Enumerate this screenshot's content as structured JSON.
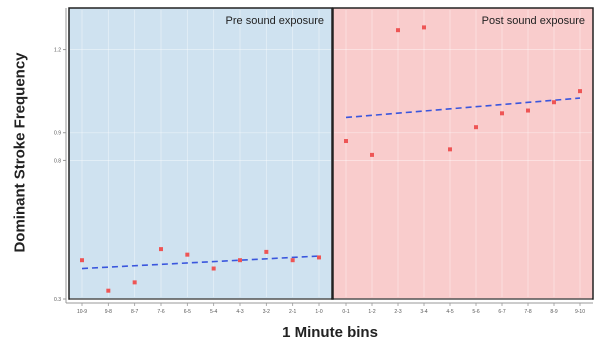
{
  "chart_data": {
    "type": "scatter",
    "ylabel": "Dominant Stroke Frequency",
    "xlabel": "1 Minute bins",
    "ylim": [
      0.3,
      1.35
    ],
    "yticks": [
      0.3,
      0.8,
      0.9,
      1.2
    ],
    "grid": true,
    "panels": [
      {
        "title": "Pre sound exposure",
        "background": "#cfe2f0",
        "categories": [
          "10-9",
          "9-8",
          "8-7",
          "7-6",
          "6-5",
          "5-4",
          "4-3",
          "3-2",
          "2-1",
          "1-0"
        ],
        "values": [
          0.44,
          0.33,
          0.36,
          0.48,
          0.46,
          0.41,
          0.44,
          0.47,
          0.44,
          0.45
        ],
        "trend": [
          0.41,
          0.455
        ]
      },
      {
        "title": "Post sound exposure",
        "background": "#f9cccc",
        "categories": [
          "0-1",
          "1-2",
          "2-3",
          "3-4",
          "4-5",
          "5-6",
          "6-7",
          "7-8",
          "8-9",
          "9-10"
        ],
        "values": [
          0.87,
          0.82,
          1.27,
          1.28,
          0.84,
          0.92,
          0.97,
          0.98,
          1.01,
          1.05
        ],
        "trend": [
          0.955,
          1.025
        ]
      }
    ],
    "colors": {
      "point": "#ee5555",
      "trend": "#3a56dd"
    }
  }
}
